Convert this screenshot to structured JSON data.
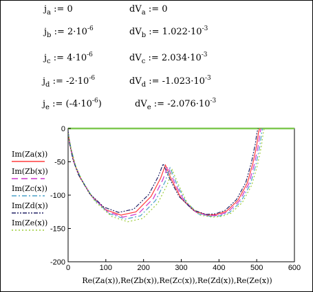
{
  "variables": [
    {
      "j_label": "j",
      "j_sub": "a",
      "j_value": "0",
      "j_exp": "",
      "j_tail": "",
      "dv_label": "dV",
      "dv_sub": "a",
      "dv_value": "0",
      "dv_exp": "",
      "dv_tail": ""
    },
    {
      "j_label": "j",
      "j_sub": "b",
      "j_value": "2·10",
      "j_exp": "-6",
      "j_tail": "",
      "dv_label": "dV",
      "dv_sub": "b",
      "dv_value": "1.022·10",
      "dv_exp": "-3",
      "dv_tail": ""
    },
    {
      "j_label": "j",
      "j_sub": "c",
      "j_value": "4·10",
      "j_exp": "-6",
      "j_tail": "",
      "dv_label": "dV",
      "dv_sub": "c",
      "dv_value": "2.034·10",
      "dv_exp": "-3",
      "dv_tail": ""
    },
    {
      "j_label": "j",
      "j_sub": "d",
      "j_value": "-2·10",
      "j_exp": "-6",
      "j_tail": "",
      "dv_label": "dV",
      "dv_sub": "d",
      "dv_value": "-1.023·10",
      "dv_exp": "-3",
      "dv_tail": ""
    },
    {
      "j_label": "j",
      "j_sub": "e",
      "j_value": "(-4·10",
      "j_exp": "-6",
      "j_tail": ")",
      "dv_label": "dV",
      "dv_sub": "e",
      "dv_value": "-2.076·10",
      "dv_exp": "-3",
      "dv_tail": ""
    }
  ],
  "colors": {
    "axis_top": "#7ec850",
    "a": "#ff3b3b",
    "b": "#cc33cc",
    "c": "#4aa0c8",
    "d": "#222266",
    "e": "#99cc33"
  },
  "chart_data": {
    "type": "line",
    "xlabel": "Re(Za(x)),Re(Zb(x)),Re(Zc(x)),Re(Zd(x)),Re(Ze(x))",
    "xlim": [
      0,
      600
    ],
    "ylim": [
      -200,
      0
    ],
    "xticks": [
      "0",
      "100",
      "200",
      "300",
      "400",
      "500",
      "600"
    ],
    "yticks": [
      "0",
      "-50",
      "-100",
      "-150",
      "-200"
    ],
    "series": [
      {
        "name": "Im(Za(x))",
        "key": "a",
        "dash": "solid",
        "x": [
          0,
          5,
          15,
          30,
          60,
          100,
          140,
          180,
          220,
          245,
          258,
          275,
          300,
          335,
          370,
          395,
          420,
          450,
          475,
          490,
          500,
          505,
          508
        ],
        "y": [
          -5,
          -25,
          -50,
          -72,
          -100,
          -122,
          -130,
          -125,
          -102,
          -75,
          -55,
          -78,
          -105,
          -124,
          -130,
          -129,
          -124,
          -108,
          -82,
          -52,
          -25,
          -5,
          0
        ]
      },
      {
        "name": "Im(Zb(x))",
        "key": "b",
        "dash": "longdash",
        "x": [
          0,
          6,
          17,
          33,
          64,
          105,
          146,
          186,
          226,
          251,
          264,
          281,
          306,
          340,
          374,
          399,
          424,
          454,
          479,
          494,
          504,
          509,
          512
        ],
        "y": [
          -5,
          -26,
          -52,
          -74,
          -103,
          -125,
          -133,
          -128,
          -105,
          -77,
          -57,
          -80,
          -107,
          -126,
          -131,
          -130,
          -125,
          -109,
          -83,
          -53,
          -26,
          -6,
          0
        ]
      },
      {
        "name": "Im(Zc(x))",
        "key": "c",
        "dash": "dashdot",
        "x": [
          0,
          7,
          19,
          36,
          68,
          110,
          152,
          192,
          232,
          257,
          270,
          287,
          311,
          345,
          378,
          403,
          428,
          458,
          483,
          498,
          508,
          513,
          516
        ],
        "y": [
          -6,
          -28,
          -55,
          -77,
          -106,
          -128,
          -136,
          -131,
          -108,
          -80,
          -59,
          -82,
          -109,
          -128,
          -132,
          -131,
          -126,
          -110,
          -84,
          -54,
          -27,
          -7,
          0
        ]
      },
      {
        "name": "Im(Zd(x))",
        "key": "d",
        "dash": "dashdotdot",
        "x": [
          0,
          4,
          13,
          27,
          56,
          95,
          134,
          174,
          214,
          239,
          252,
          269,
          294,
          330,
          366,
          391,
          416,
          446,
          471,
          486,
          496,
          501,
          504
        ],
        "y": [
          -4,
          -23,
          -47,
          -69,
          -97,
          -118,
          -126,
          -121,
          -99,
          -72,
          -53,
          -75,
          -102,
          -122,
          -129,
          -128,
          -123,
          -107,
          -81,
          -51,
          -24,
          -5,
          0
        ]
      },
      {
        "name": "Im(Ze(x))",
        "key": "e",
        "dash": "dotted",
        "x": [
          0,
          8,
          21,
          39,
          72,
          115,
          158,
          198,
          238,
          263,
          276,
          293,
          316,
          350,
          382,
          407,
          432,
          462,
          487,
          502,
          512,
          517,
          520
        ],
        "y": [
          -7,
          -30,
          -58,
          -80,
          -110,
          -132,
          -140,
          -135,
          -112,
          -84,
          -62,
          -85,
          -112,
          -130,
          -133,
          -132,
          -127,
          -111,
          -85,
          -55,
          -28,
          -8,
          0
        ]
      }
    ]
  }
}
